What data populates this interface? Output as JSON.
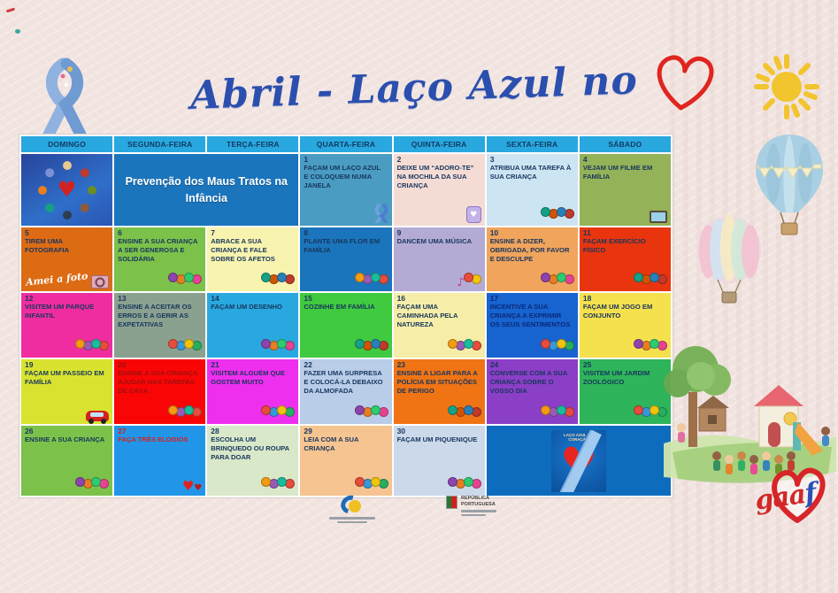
{
  "title": {
    "text": "Abril - Laço Azul no",
    "heart_icon": "red-heart-outline-icon"
  },
  "branding": {
    "gaaf_red": "gaa",
    "gaaf_blue": "f"
  },
  "footer": {
    "gov_logo_text": "REPÚBLICA PORTUGUESA"
  },
  "decorations": [
    "blue-awareness-ribbon",
    "sun-icon",
    "blue-hot-air-balloon",
    "pastel-hot-air-balloon",
    "playground-scene",
    "gaaf-heart-logo"
  ],
  "calendar": {
    "weekdays": [
      "DOMINGO",
      "SEGUNDA-FEIRA",
      "TERÇA-FEIRA",
      "QUARTA-FEIRA",
      "QUINTA-FEIRA",
      "SEXTA-FEIRA",
      "SÁBADO"
    ],
    "rows": [
      {
        "cells": [
          {
            "kind": "img",
            "icon": "children-circle-heart-image"
          },
          {
            "kind": "banner",
            "span": 2,
            "bg": "#1b75bc",
            "text": "Prevenção dos Maus Tratos na Infância"
          },
          {
            "num": "1",
            "text": "FAÇAM UM LAÇO AZUL E COLOQUEM NUMA JANELA",
            "bg": "#4a9cc2",
            "icon": "blue-ribbon-icon"
          },
          {
            "num": "2",
            "text": "DEIXE UM “ADORO-TE” NA MOCHILA DA SUA CRIANÇA",
            "bg": "#f4dcd5",
            "icon": "backpack-icon"
          },
          {
            "num": "3",
            "text": "ATRIBUA UMA TAREFA À SUA CRIANÇA",
            "bg": "#cde4f2",
            "icon": "child-chores-clipart"
          },
          {
            "num": "4",
            "text": "VEJAM UM FILME EM FAMÍLIA",
            "bg": "#94b257",
            "icon": "family-tv-clipart"
          }
        ]
      },
      {
        "cells": [
          {
            "num": "5",
            "text": "TIREM UMA FOTOGRAFIA",
            "bg": "#dd6b14",
            "icon": "camera-icon",
            "sticker": "Amei a foto"
          },
          {
            "num": "6",
            "text": "ENSINE A SUA CRIANÇA A SER GENEROSA E SOLIDÁRIA",
            "bg": "#7cc24a",
            "icon": "kids-clipart"
          },
          {
            "num": "7",
            "text": "ABRACE A SUA CRIANÇA E FALE SOBRE OS AFETOS",
            "bg": "#f8f3ae",
            "icon": "hug-clipart"
          },
          {
            "num": "8",
            "text": "PLANTE UMA FLOR EM FAMÍLIA",
            "bg": "#1b75bc",
            "icon": "planting-clipart"
          },
          {
            "num": "9",
            "text": "DANCEM UMA MÚSICA",
            "bg": "#b3abd4",
            "icon": "dancing-music-clipart"
          },
          {
            "num": "10",
            "text": "ENSINE A DIZER, OBRIGADA, POR FAVOR E DESCULPE",
            "bg": "#f0a45c",
            "icon": "polite-girl-clipart"
          },
          {
            "num": "11",
            "text": "FAÇAM EXERCÍCIO FÍSICO",
            "bg": "#e8350e",
            "icon": "kids-bikes-clipart"
          }
        ]
      },
      {
        "cells": [
          {
            "num": "12",
            "text": "VISITEM UM PARQUE INFANTIL",
            "bg": "#f02da0",
            "icon": "kids-clipart"
          },
          {
            "num": "13",
            "text": "ENSINE A ACEITAR OS ERROS E A GERIR AS EXPETATIVAS",
            "bg": "#8ba18f",
            "icon": "kids-clipart"
          },
          {
            "num": "14",
            "text": "FAÇAM UM DESENHO",
            "bg": "#29a8e0",
            "icon": "drawing-clipart"
          },
          {
            "num": "15",
            "text": "COZINHE EM FAMÍLIA",
            "bg": "#3fca3f",
            "icon": "cooking-clipart"
          },
          {
            "num": "16",
            "text": "FAÇAM UMA CAMINHADA PELA NATUREZA",
            "bg": "#f5eda8",
            "icon": "hiking-clipart"
          },
          {
            "num": "17",
            "text": "INCENTIVE A SUA CRIANÇA A EXPRIMIR OS SEUS SENTIMENTOS",
            "bg": "#1763cf",
            "fg": "#0a2a78",
            "icon": "emotions-clipart"
          },
          {
            "num": "18",
            "text": "FAÇAM UM JOGO EM CONJUNTO",
            "bg": "#f5e04e",
            "icon": "kids-clipart"
          }
        ]
      },
      {
        "cells": [
          {
            "num": "19",
            "text": "FAÇAM UM PASSEIO EM FAMÍLIA",
            "bg": "#d9e32f",
            "icon": "car-icon"
          },
          {
            "num": "20",
            "text": "ENSINE A SUA CRIANÇA AJUDAR NAS TAREFAS DE CASA",
            "bg": "#fa0505",
            "fg": "#9c1010",
            "icon": "chores-clipart"
          },
          {
            "num": "21",
            "text": "VISITEM ALGUÉM QUE GOSTEM MUITO",
            "bg": "#ee2fee",
            "icon": "family-visit-clipart"
          },
          {
            "num": "22",
            "text": "FAZER UMA SURPRESA E COLOCÁ-LA DEBAIXO DA ALMOFADA",
            "bg": "#b9cce8",
            "icon": "sleeping-child-clipart"
          },
          {
            "num": "23",
            "text": "ENSINE A LIGAR PARA A POLÍCIA EM SITUAÇÕES DE PERIGO",
            "bg": "#f07414",
            "icon": "phone-child-clipart"
          },
          {
            "num": "24",
            "text": "CONVERSE COM A SUA CRIANÇA SOBRE O VOSSO DIA",
            "bg": "#8a3fc6",
            "icon": "talking-kids-clipart"
          },
          {
            "num": "25",
            "text": "VISITEM UM JARDIM ZOOLÓGICO",
            "bg": "#2eb45a",
            "icon": "zoo-clipart"
          }
        ]
      },
      {
        "cells": [
          {
            "num": "26",
            "text": "ENSINE A SUA CRIANÇA",
            "bg": "#7cc24a",
            "icon": "kids-clipart"
          },
          {
            "num": "27",
            "text": "FAÇA TRÊS ELOGIOS",
            "bg": "#2196e8",
            "fg": "#d42020",
            "icon": "hearts-icon"
          },
          {
            "num": "28",
            "text": "ESCOLHA UM BRINQUEDO OU ROUPA PARA DOAR",
            "bg": "#d9e8c9",
            "icon": "donation-clipart"
          },
          {
            "num": "29",
            "text": "LEIA COM A SUA CRIANÇA",
            "bg": "#f5c491",
            "icon": "reading-clipart"
          },
          {
            "num": "30",
            "text": "FAÇAM UM PIQUENIQUE",
            "bg": "#ccd9ea",
            "icon": "picnic-clipart"
          },
          {
            "kind": "poster",
            "span": 2,
            "bg": "#0d6cbe",
            "caption": "LAÇO AZUL NO CORAÇÃO",
            "icon": "blue-ribbon-heart-poster"
          }
        ]
      }
    ]
  }
}
